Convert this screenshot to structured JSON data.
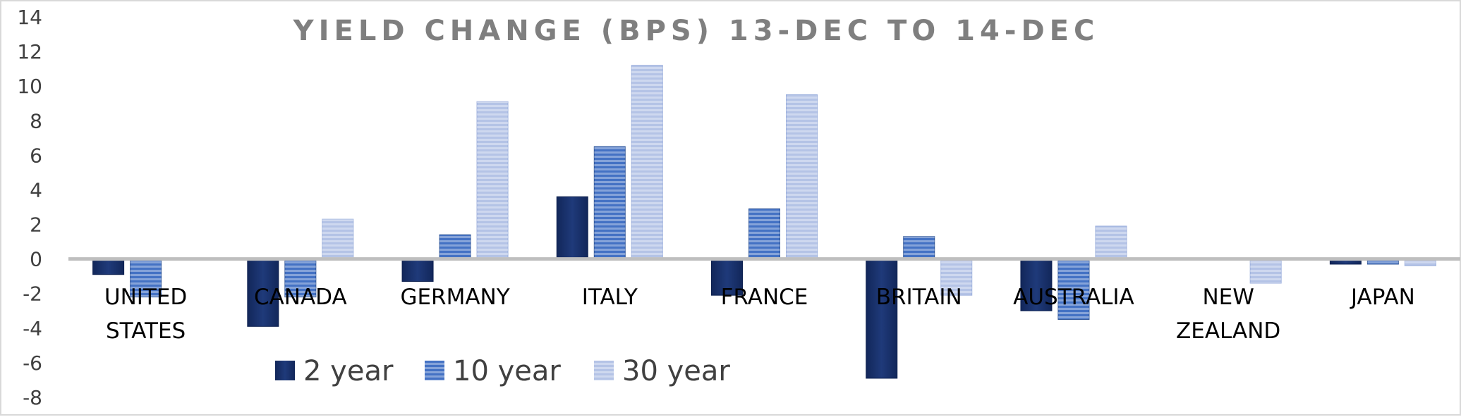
{
  "chart_data": {
    "type": "bar",
    "title": "YIELD CHANGE (BPS) 13-DEC TO 14-DEC",
    "xlabel": "",
    "ylabel": "",
    "ylim": [
      -8,
      14
    ],
    "yticks": [
      14,
      12,
      10,
      8,
      6,
      4,
      2,
      0,
      -2,
      -4,
      -6,
      -8
    ],
    "categories": [
      [
        "UNITED",
        "STATES"
      ],
      [
        "CANADA"
      ],
      [
        "GERMANY"
      ],
      [
        "ITALY"
      ],
      [
        "FRANCE"
      ],
      [
        "BRITAIN"
      ],
      [
        "AUSTRALIA"
      ],
      [
        "NEW",
        "ZEALAND"
      ],
      [
        "JAPAN"
      ]
    ],
    "series": [
      {
        "name": "2 year",
        "values": [
          -0.9,
          -3.9,
          -1.3,
          3.6,
          -2.1,
          -6.9,
          -3.0,
          0,
          -0.3
        ]
      },
      {
        "name": "10 year",
        "values": [
          -2.2,
          -2.2,
          1.4,
          6.5,
          2.9,
          1.3,
          -3.5,
          0,
          -0.3
        ]
      },
      {
        "name": "30 year",
        "values": [
          0,
          2.3,
          9.1,
          11.2,
          9.5,
          -2.1,
          1.9,
          -1.4,
          -0.4
        ]
      }
    ],
    "colors": [
      "#1f3a7a",
      "#4472c4",
      "#b4c3e6"
    ],
    "grid": false,
    "legend_position": "bottom-left"
  }
}
